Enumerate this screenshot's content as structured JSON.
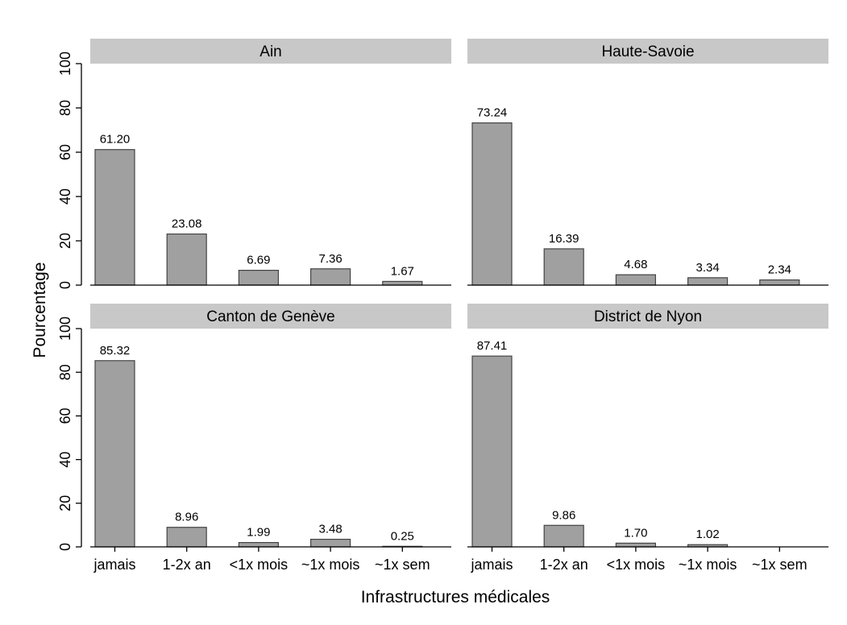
{
  "chart_data": {
    "type": "bar",
    "xlabel": "Infrastructures médicales",
    "ylabel": "Pourcentage",
    "ylim": [
      0,
      100
    ],
    "yticks": [
      0,
      20,
      40,
      60,
      80,
      100
    ],
    "categories": [
      "jamais",
      "1-2x an",
      "<1x mois",
      "~1x mois",
      "~1x sem"
    ],
    "grid": false,
    "bar_color": "#a0a0a0",
    "strip_color": "#c8c8c8",
    "panels": [
      {
        "title": "Ain",
        "values": [
          61.2,
          23.08,
          6.69,
          7.36,
          1.67
        ],
        "labels": [
          "61.20",
          "23.08",
          "6.69",
          "7.36",
          "1.67"
        ]
      },
      {
        "title": "Haute-Savoie",
        "values": [
          73.24,
          16.39,
          4.68,
          3.34,
          2.34
        ],
        "labels": [
          "73.24",
          "16.39",
          "4.68",
          "3.34",
          "2.34"
        ]
      },
      {
        "title": "Canton de Genève",
        "values": [
          85.32,
          8.96,
          1.99,
          3.48,
          0.25
        ],
        "labels": [
          "85.32",
          "8.96",
          "1.99",
          "3.48",
          "0.25"
        ]
      },
      {
        "title": "District de Nyon",
        "values": [
          87.41,
          9.86,
          1.7,
          1.02,
          0
        ],
        "labels": [
          "87.41",
          "9.86",
          "1.70",
          "1.02",
          ""
        ]
      }
    ]
  }
}
